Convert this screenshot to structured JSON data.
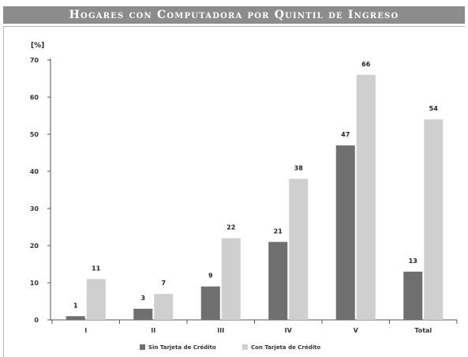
{
  "header": {
    "title": "Hogares con Computadora por Quintil de Ingreso"
  },
  "chart_data": {
    "type": "bar",
    "title": "Hogares con Computadora por Quintil de Ingreso",
    "ylabel": "[%]",
    "xlabel": "",
    "ylim": [
      0,
      70
    ],
    "yticks": [
      0,
      10,
      20,
      30,
      40,
      50,
      60,
      70
    ],
    "categories": [
      "I",
      "II",
      "III",
      "IV",
      "V",
      "Total"
    ],
    "series": [
      {
        "name": "Sin Tarjeta de Crédito",
        "values": [
          1,
          3,
          9,
          21,
          47,
          13
        ],
        "color": "#6f6f6f"
      },
      {
        "name": "Con Tarjeta de Crédito",
        "values": [
          11,
          7,
          22,
          38,
          66,
          54
        ],
        "color": "#cfcfcf"
      }
    ],
    "grid": false,
    "legend_position": "bottom"
  }
}
